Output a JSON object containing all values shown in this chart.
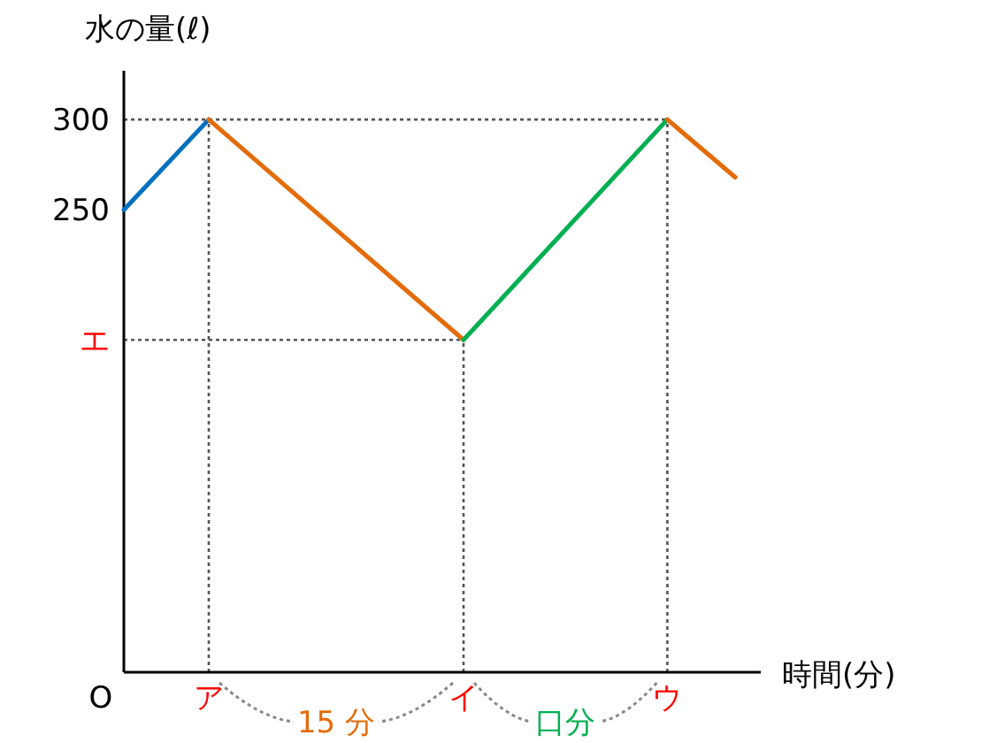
{
  "chart_data": {
    "type": "line",
    "ylabel": "水の量(ℓ)",
    "xlabel": "時間(分)",
    "ylim": [
      -6,
      327
    ],
    "categories": [
      null,
      null,
      null,
      null,
      null,
      "ア",
      null,
      null,
      null,
      null,
      null,
      null,
      null,
      null,
      null,
      null,
      null,
      null,
      null,
      null,
      "イ",
      null,
      null,
      null,
      null,
      null,
      null,
      null,
      null,
      null,
      null,
      null,
      "ウ",
      null,
      null,
      null,
      null,
      null
    ],
    "yticks": [
      300,
      250,
      {
        "value": 178,
        "label": "エ"
      }
    ],
    "grid": false,
    "marker": "none",
    "line_style": "solid",
    "series": [
      {
        "color": "#0070c0",
        "values": [
          250,
          null,
          null,
          null,
          null,
          300,
          null,
          null,
          null,
          null,
          null,
          null,
          null,
          null,
          null,
          null,
          null,
          null,
          null,
          null,
          null,
          null,
          null,
          null,
          null,
          null,
          null,
          null,
          null,
          null,
          null,
          null,
          null,
          null,
          null,
          null,
          null,
          null
        ]
      },
      {
        "color": "#e36c09",
        "values": [
          null,
          null,
          null,
          null,
          null,
          300,
          null,
          null,
          null,
          null,
          null,
          null,
          null,
          null,
          null,
          null,
          null,
          null,
          null,
          null,
          178,
          null,
          null,
          null,
          null,
          null,
          null,
          null,
          null,
          null,
          null,
          null,
          null,
          null,
          null,
          null,
          null,
          null
        ]
      },
      {
        "color": "#00b050",
        "values": [
          null,
          null,
          null,
          null,
          null,
          null,
          null,
          null,
          null,
          null,
          null,
          null,
          null,
          null,
          null,
          null,
          null,
          null,
          null,
          null,
          178,
          null,
          null,
          null,
          null,
          null,
          null,
          null,
          null,
          null,
          null,
          null,
          300,
          null,
          null,
          null,
          null,
          null
        ]
      },
      {
        "color": "#e36c09",
        "values": [
          null,
          null,
          null,
          null,
          null,
          null,
          null,
          null,
          null,
          null,
          null,
          null,
          null,
          null,
          null,
          null,
          null,
          null,
          null,
          null,
          null,
          null,
          null,
          null,
          null,
          null,
          null,
          null,
          null,
          null,
          null,
          null,
          300,
          null,
          null,
          null,
          268,
          null
        ]
      }
    ],
    "ref_lines": [
      {
        "axis": "y",
        "value": 300,
        "color": "#555555",
        "line_style": "dotted"
      },
      {
        "axis": "y",
        "value": 178,
        "color": "#555555",
        "line_style": "dotted"
      },
      {
        "axis": "x",
        "value": "ア",
        "color": "#555555",
        "line_style": "dotted"
      },
      {
        "axis": "x",
        "value": "イ",
        "color": "#555555",
        "line_style": "dotted"
      },
      {
        "axis": "x",
        "value": "ウ",
        "color": "#555555",
        "line_style": "dotted"
      }
    ],
    "annotations": [
      "O",
      "15 分",
      "口分"
    ]
  }
}
